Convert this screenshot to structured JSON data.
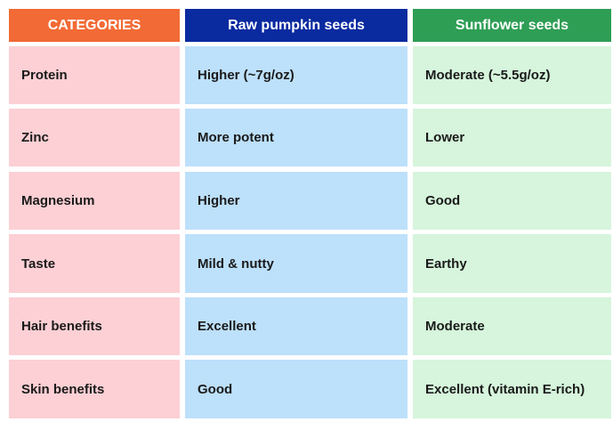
{
  "header": {
    "categories": "CATEGORIES",
    "col1": "Raw pumpkin seeds",
    "col2": "Sunflower seeds"
  },
  "colors": {
    "header_categories": "#f26a35",
    "header_col1": "#0a2aa0",
    "header_col2": "#2e9e55",
    "body_col0": "#fcd0d4",
    "body_col1": "#bde0fb",
    "body_col2": "#d6f5dc"
  },
  "rows": [
    {
      "category": "Protein",
      "pumpkin": "Higher (~7g/oz)",
      "sunflower": "Moderate (~5.5g/oz)"
    },
    {
      "category": "Zinc",
      "pumpkin": "More potent",
      "sunflower": "Lower"
    },
    {
      "category": "Magnesium",
      "pumpkin": "Higher",
      "sunflower": "Good"
    },
    {
      "category": "Taste",
      "pumpkin": "Mild & nutty",
      "sunflower": "Earthy"
    },
    {
      "category": "Hair benefits",
      "pumpkin": "Excellent",
      "sunflower": "Moderate"
    },
    {
      "category": "Skin benefits",
      "pumpkin": "Good",
      "sunflower": "Excellent (vitamin E-rich)"
    }
  ]
}
